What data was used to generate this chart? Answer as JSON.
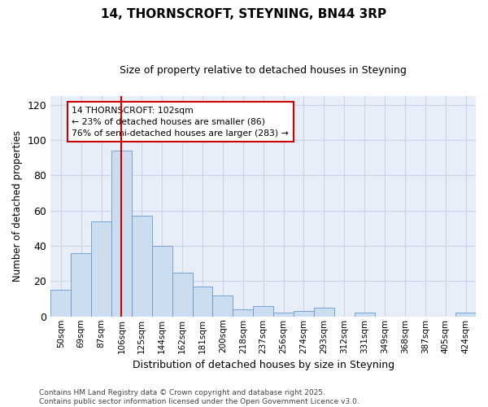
{
  "title": "14, THORNSCROFT, STEYNING, BN44 3RP",
  "subtitle": "Size of property relative to detached houses in Steyning",
  "xlabel": "Distribution of detached houses by size in Steyning",
  "ylabel": "Number of detached properties",
  "categories": [
    "50sqm",
    "69sqm",
    "87sqm",
    "106sqm",
    "125sqm",
    "144sqm",
    "162sqm",
    "181sqm",
    "200sqm",
    "218sqm",
    "237sqm",
    "256sqm",
    "274sqm",
    "293sqm",
    "312sqm",
    "331sqm",
    "349sqm",
    "368sqm",
    "387sqm",
    "405sqm",
    "424sqm"
  ],
  "values": [
    15,
    36,
    54,
    94,
    57,
    40,
    25,
    17,
    12,
    4,
    6,
    2,
    3,
    5,
    0,
    2,
    0,
    0,
    0,
    0,
    2
  ],
  "bar_color": "#ccddf0",
  "bar_edge_color": "#6699cc",
  "grid_color": "#c8d4e8",
  "vline_x": 3,
  "vline_color": "#cc0000",
  "annotation_text": "14 THORNSCROFT: 102sqm\n← 23% of detached houses are smaller (86)\n76% of semi-detached houses are larger (283) →",
  "annotation_box_facecolor": "#ffffff",
  "annotation_box_edgecolor": "#cc0000",
  "ylim": [
    0,
    125
  ],
  "yticks": [
    0,
    20,
    40,
    60,
    80,
    100,
    120
  ],
  "footer": "Contains HM Land Registry data © Crown copyright and database right 2025.\nContains public sector information licensed under the Open Government Licence v3.0.",
  "bg_color": "#ffffff",
  "plot_bg_color": "#e8eef8"
}
